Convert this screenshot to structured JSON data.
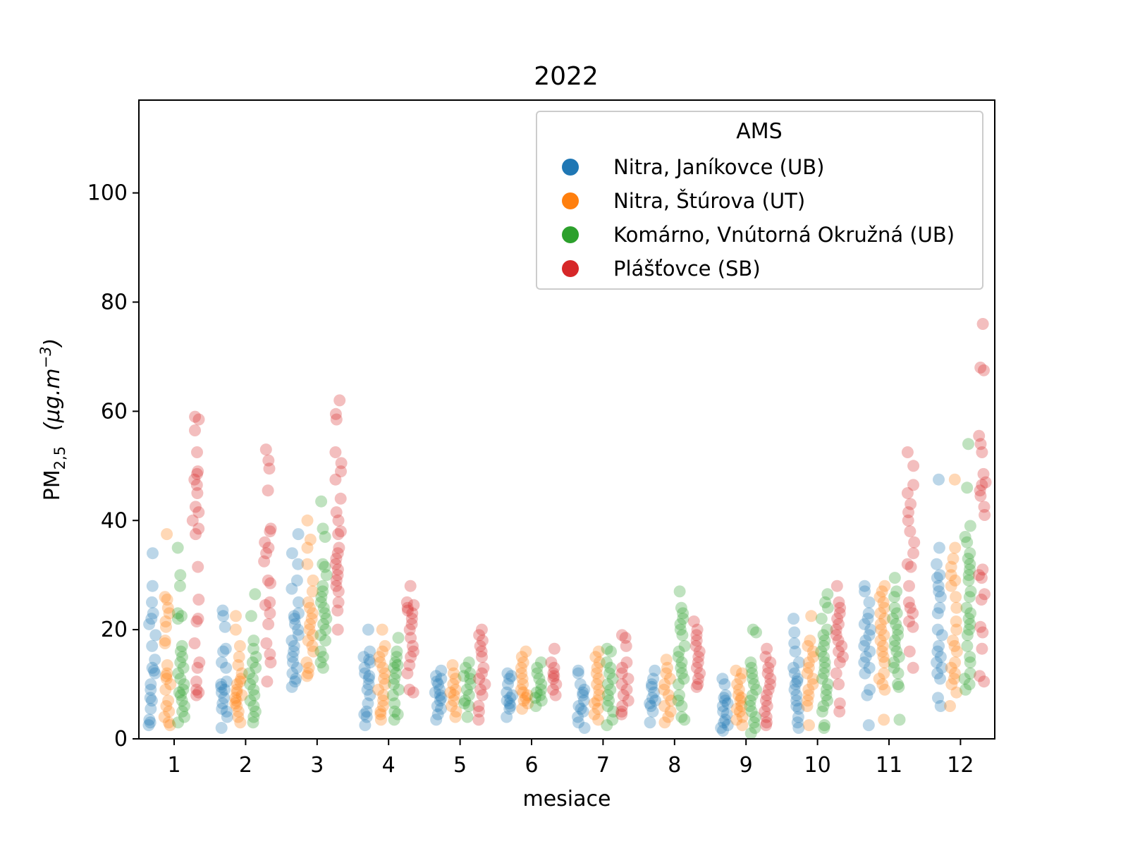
{
  "chart_data": {
    "type": "scatter",
    "title": "2022",
    "xlabel": "mesiace",
    "ylabel_base": "PM",
    "ylabel_sub": "2,5",
    "ylabel_unit": "(μg.m",
    "ylabel_sup": "−3",
    "ylabel_close": ")",
    "categories": [
      "1",
      "2",
      "3",
      "4",
      "5",
      "6",
      "7",
      "8",
      "9",
      "10",
      "11",
      "12"
    ],
    "ylim": [
      0,
      117
    ],
    "yticks": [
      "0",
      "20",
      "40",
      "60",
      "80",
      "100"
    ],
    "grid": false,
    "legend": {
      "title": "AMS",
      "placement": "top-right"
    },
    "series": [
      {
        "name": "Nitra, Janíkovce (UB)",
        "color": "#1f77b4",
        "values": [
          [
            2.5,
            3,
            3.5,
            5.5,
            7,
            7.5,
            9,
            10,
            12,
            12.5,
            13,
            14.5,
            17,
            19,
            21,
            22,
            23,
            25,
            28,
            34
          ],
          [
            2,
            4,
            5,
            5.5,
            6.5,
            7.5,
            8.5,
            9,
            9.5,
            10,
            10.5,
            13,
            14,
            16,
            16.5,
            20.5,
            22.5,
            23.5
          ],
          [
            9.5,
            10.5,
            11,
            12,
            13,
            14,
            15,
            16,
            17,
            18,
            19,
            20,
            21,
            22,
            22.5,
            23,
            25,
            27.5,
            29,
            32,
            34,
            37.5
          ],
          [
            2.5,
            4,
            4.5,
            5,
            6.5,
            8,
            9,
            10,
            11,
            11.5,
            12,
            13,
            14,
            14.5,
            15,
            16,
            20
          ],
          [
            3.5,
            4.5,
            5.5,
            6,
            7,
            7.5,
            8,
            8.5,
            9,
            10,
            10.5,
            11,
            11.5,
            12.5
          ],
          [
            4,
            5.5,
            6,
            6.5,
            7,
            7.5,
            8,
            8.5,
            10,
            11,
            11.5,
            12
          ],
          [
            2,
            3,
            4,
            5,
            5.5,
            6,
            7,
            8,
            8.5,
            9,
            10,
            12,
            12.5
          ],
          [
            3,
            5,
            6,
            6.5,
            7,
            7.5,
            8.5,
            9.5,
            10,
            11,
            12.5
          ],
          [
            1.5,
            2,
            2.5,
            3,
            3.5,
            4.5,
            5,
            6,
            6.5,
            7,
            7.5,
            8,
            10,
            11
          ],
          [
            2,
            3,
            4,
            5.5,
            6,
            7,
            8,
            9,
            10,
            10.5,
            11,
            12,
            13,
            14,
            16,
            17.5,
            19.5,
            22
          ],
          [
            2.5,
            8,
            9,
            12,
            13,
            14,
            15,
            16,
            17,
            18,
            19,
            20,
            21,
            22,
            23,
            25,
            27,
            28
          ],
          [
            6,
            7.5,
            11,
            12,
            13,
            14,
            15,
            16,
            17,
            19,
            20,
            23,
            24,
            26,
            27,
            28,
            29.5,
            30,
            32,
            35,
            47.5
          ]
        ]
      },
      {
        "name": "Nitra, Štúrova (UT)",
        "color": "#ff7f0e",
        "values": [
          [
            2.5,
            3,
            4,
            5,
            6,
            7,
            9,
            10,
            11,
            11.5,
            12,
            13.5,
            17.5,
            18,
            20.5,
            21.5,
            23,
            24,
            25.5,
            26,
            37.5
          ],
          [
            3,
            4,
            5,
            6,
            6.5,
            7,
            7.5,
            8,
            8.5,
            9,
            10,
            10.5,
            11,
            12,
            13.5,
            15,
            17,
            20,
            22.5
          ],
          [
            11.5,
            12,
            13,
            14,
            16,
            17,
            18,
            19,
            20,
            21,
            22,
            23,
            24,
            25,
            27,
            29,
            32,
            35,
            36.5,
            40
          ],
          [
            3.5,
            4.5,
            5,
            6,
            7,
            8,
            9,
            10,
            11,
            12,
            13,
            14,
            15,
            16,
            17,
            20
          ],
          [
            4,
            5,
            6,
            7,
            8,
            8.5,
            9,
            10,
            11,
            12,
            13.5
          ],
          [
            5.5,
            6.5,
            7,
            7.5,
            8,
            8.5,
            9,
            10,
            11,
            12,
            13,
            14,
            15,
            16
          ],
          [
            3.5,
            4.5,
            5.5,
            6.5,
            7,
            8,
            9,
            10,
            11,
            12,
            13,
            14,
            15,
            16
          ],
          [
            3,
            4,
            5,
            6,
            7,
            8,
            9,
            10,
            11,
            12,
            13,
            14.5
          ],
          [
            2.5,
            3.5,
            4,
            5,
            5.5,
            6,
            7,
            7.5,
            8,
            9,
            10,
            11,
            12,
            12.5
          ],
          [
            2.5,
            6,
            7,
            8,
            9,
            10,
            11,
            12,
            13,
            14,
            15,
            16,
            17,
            18,
            22.5
          ],
          [
            3.5,
            9,
            10,
            11,
            12,
            14,
            15,
            16,
            17,
            18,
            19,
            20,
            21,
            22,
            23,
            24,
            25,
            26,
            27,
            28
          ],
          [
            6,
            8.5,
            10,
            11,
            12,
            13,
            14,
            16,
            17,
            18,
            20,
            21.5,
            24,
            26,
            28,
            29,
            30,
            31.5,
            33,
            35,
            47.5
          ]
        ]
      },
      {
        "name": "Komárno, Vnútorná Okružná (UB)",
        "color": "#2ca02c",
        "values": [
          [
            3,
            4,
            5,
            6,
            7,
            8,
            8.5,
            9,
            10,
            11,
            12,
            13,
            14,
            15,
            16,
            17,
            22,
            22.5,
            23,
            28,
            30,
            35
          ],
          [
            3,
            4,
            5,
            6,
            7,
            8,
            9,
            10,
            11,
            12,
            13,
            14,
            15,
            16.5,
            18,
            22.5,
            26.5
          ],
          [
            13,
            14,
            15,
            16,
            18,
            19,
            20,
            21,
            22,
            23,
            24,
            25,
            26,
            27,
            28,
            30,
            31.5,
            32,
            37,
            38.5,
            43.5
          ],
          [
            3.5,
            4.5,
            5,
            6.5,
            8,
            9,
            10,
            11,
            12,
            13,
            13.5,
            14,
            15,
            16,
            18.5
          ],
          [
            4,
            6,
            6.5,
            7,
            8,
            9,
            10,
            11,
            11.5,
            12,
            13,
            14
          ],
          [
            6,
            7,
            7.5,
            8,
            8.5,
            9,
            10,
            11,
            12,
            13,
            14
          ],
          [
            2.5,
            3.5,
            5,
            6,
            7,
            8,
            9,
            10,
            11,
            12,
            13,
            14,
            16,
            16.5
          ],
          [
            3.5,
            4,
            6,
            7,
            8,
            10,
            11,
            12,
            13,
            14,
            15,
            16,
            17,
            19,
            20,
            21,
            22,
            23,
            24,
            27
          ],
          [
            1,
            2,
            3,
            4,
            5,
            6,
            7,
            8,
            9,
            10,
            11,
            12,
            13,
            14,
            19.5,
            20
          ],
          [
            2,
            2.5,
            5,
            6,
            7,
            8,
            9,
            10,
            11,
            12,
            13,
            14,
            15,
            16,
            17,
            18,
            19,
            20,
            22,
            24,
            25,
            26.5
          ],
          [
            3.5,
            9.5,
            10,
            12,
            13,
            14,
            15,
            16,
            17,
            18,
            19,
            20,
            21,
            22,
            23,
            24,
            26,
            27,
            29.5
          ],
          [
            9,
            10,
            11,
            12,
            14,
            15,
            17,
            19,
            20,
            21,
            22,
            23,
            24,
            26,
            27,
            29,
            30,
            31,
            32,
            33,
            34,
            36,
            37,
            39,
            46,
            54
          ]
        ]
      },
      {
        "name": "Plášťovce (SB)",
        "color": "#d62728",
        "values": [
          [
            8,
            8.5,
            9,
            10.5,
            13,
            14,
            17.5,
            21.5,
            22,
            25.5,
            31.5,
            37.5,
            38.5,
            40,
            41.5,
            42.5,
            45,
            46.5,
            47.5,
            48.5,
            49,
            52.5,
            56.5,
            58.5,
            59
          ],
          [
            10.5,
            14,
            15.5,
            17.5,
            21,
            23,
            24.5,
            25,
            28.5,
            29,
            32.5,
            34,
            35,
            36,
            38,
            38.5,
            45.5,
            49.5,
            51,
            53
          ],
          [
            20,
            23.5,
            25,
            27,
            28,
            29,
            30,
            31,
            32,
            33,
            34,
            35,
            37.5,
            38,
            40,
            41.5,
            44,
            47.5,
            49,
            50.5,
            52.5,
            58.5,
            59.5,
            62
          ],
          [
            8.5,
            9,
            12,
            13.5,
            15,
            16,
            17,
            18.5,
            20,
            21,
            22,
            23,
            23.5,
            24,
            24.5,
            25,
            28
          ],
          [
            3.5,
            5,
            6,
            8,
            9,
            10,
            11,
            12,
            13,
            15,
            16,
            17,
            18,
            19,
            20
          ],
          [
            8,
            9,
            10,
            11,
            11.5,
            12,
            13,
            14,
            16.5
          ],
          [
            4.5,
            5,
            6,
            7,
            8,
            9,
            10,
            11,
            12,
            13,
            14,
            17,
            18.5,
            19
          ],
          [
            9.5,
            10,
            11,
            12,
            13,
            14,
            15,
            16,
            17,
            18,
            19,
            20,
            21.5
          ],
          [
            2.5,
            3,
            4,
            5,
            6,
            7,
            8,
            9,
            10,
            11,
            12,
            13,
            14,
            15,
            16.5
          ],
          [
            5,
            6.5,
            10,
            12,
            14,
            15,
            16,
            17,
            18,
            19,
            20,
            21,
            22,
            23,
            24,
            25,
            28
          ],
          [
            13,
            16,
            20.5,
            21.5,
            23,
            24,
            25,
            28,
            31.5,
            32,
            34,
            36,
            38,
            40,
            41.5,
            43,
            45,
            46.5,
            50,
            52.5
          ],
          [
            10.5,
            11.5,
            16.5,
            19.5,
            20.5,
            25.5,
            26.5,
            29.5,
            30,
            31,
            41,
            42.5,
            44.5,
            45.5,
            46.5,
            47,
            48.5,
            52.5,
            54,
            55.5,
            67.5,
            68,
            76
          ]
        ]
      }
    ]
  }
}
